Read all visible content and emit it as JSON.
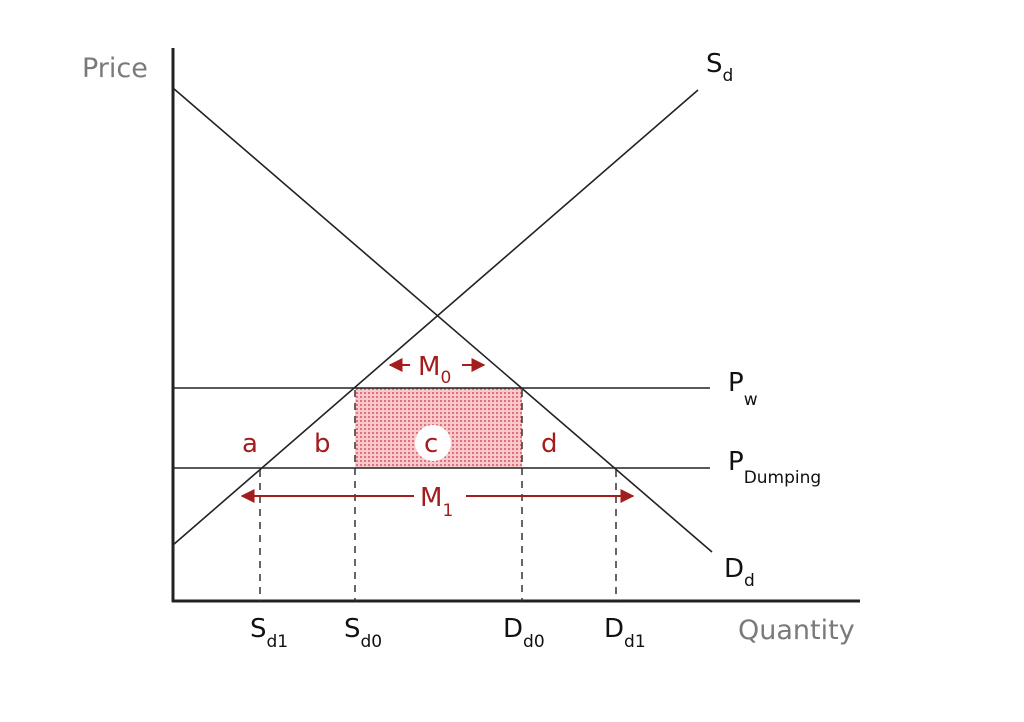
{
  "axes": {
    "y_label": "Price",
    "x_label": "Quantity"
  },
  "curves": {
    "supply": {
      "main": "S",
      "sub": "d"
    },
    "demand": {
      "main": "D",
      "sub": "d"
    },
    "world_price": {
      "main": "P",
      "sub": "w"
    },
    "dumping_price": {
      "main": "P",
      "sub": "Dumping"
    }
  },
  "quantities": [
    {
      "main": "S",
      "sub": "d1"
    },
    {
      "main": "S",
      "sub": "d0"
    },
    {
      "main": "D",
      "sub": "d0"
    },
    {
      "main": "D",
      "sub": "d1"
    }
  ],
  "areas": [
    "a",
    "b",
    "c",
    "d"
  ],
  "imports": {
    "m0": {
      "main": "M",
      "sub": "0"
    },
    "m1": {
      "main": "M",
      "sub": "1"
    }
  }
}
